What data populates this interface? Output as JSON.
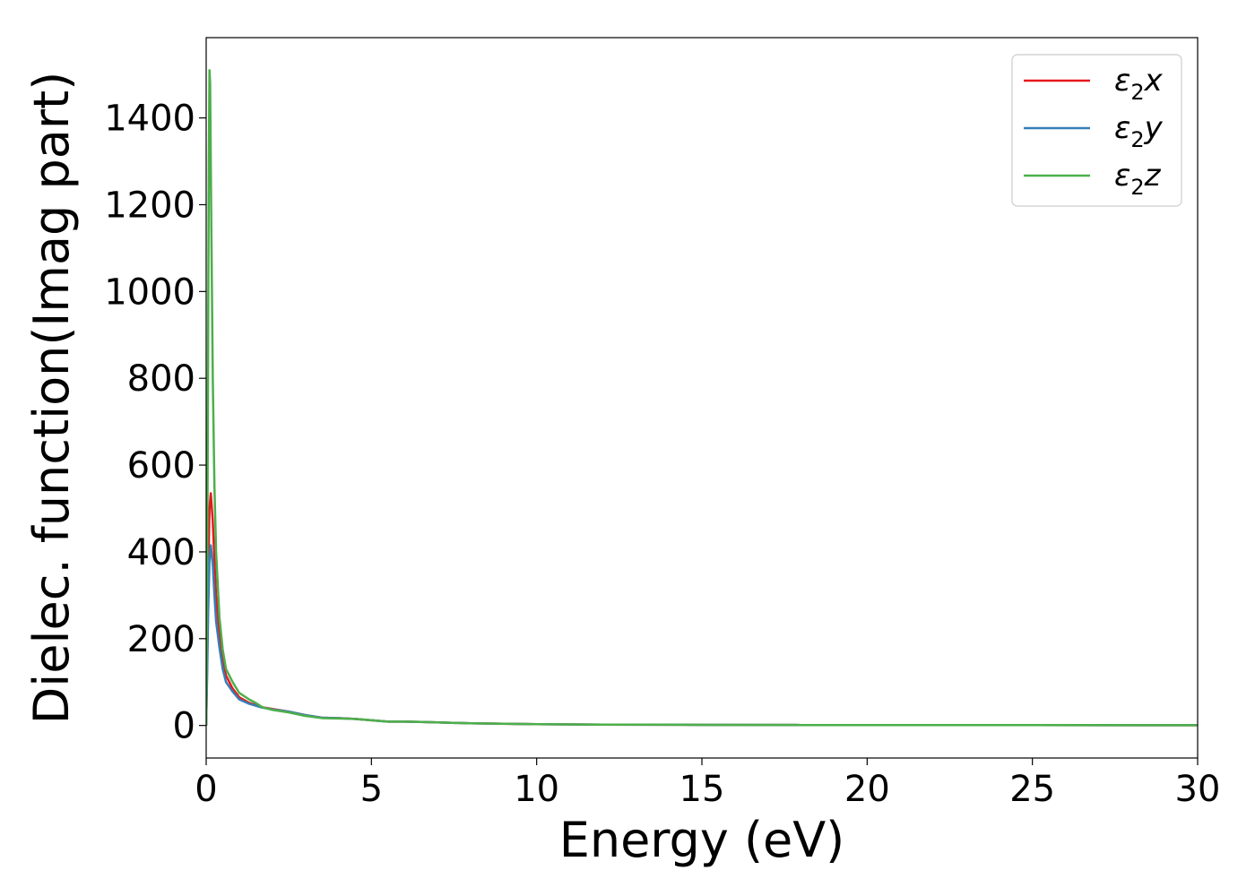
{
  "chart_data": {
    "type": "line",
    "xlabel": "Energy (eV)",
    "ylabel": "Dielec. function(Imag part)",
    "xlim": [
      0,
      30
    ],
    "ylim": [
      -75,
      1585
    ],
    "x_ticks": [
      0,
      5,
      10,
      15,
      20,
      25,
      30
    ],
    "y_ticks": [
      0,
      200,
      400,
      600,
      800,
      1000,
      1200,
      1400
    ],
    "grid": false,
    "legend_position": "top-right",
    "series": [
      {
        "name": "ε2x",
        "label_base": "ε",
        "label_sub": "2",
        "label_tail": "x",
        "color": "#e41a1c",
        "x": [
          0,
          0.03,
          0.06,
          0.1,
          0.14,
          0.2,
          0.25,
          0.3,
          0.4,
          0.5,
          0.6,
          0.8,
          1.0,
          1.3,
          1.7,
          2.0,
          2.5,
          3.0,
          3.5,
          4.0,
          4.5,
          5.0,
          5.5,
          6.0,
          6.5,
          7.0,
          8.0,
          9.0,
          10.0,
          12.0,
          15.0,
          18.0,
          20.0,
          25.0,
          30.0
        ],
        "y": [
          0,
          150,
          330,
          500,
          535,
          470,
          380,
          300,
          210,
          150,
          115,
          85,
          65,
          52,
          42,
          38,
          32,
          24,
          18,
          17,
          15,
          12,
          9,
          9,
          8,
          7,
          5,
          4,
          3,
          2,
          1.5,
          1,
          1,
          0.8,
          0.5
        ]
      },
      {
        "name": "ε2y",
        "label_base": "ε",
        "label_sub": "2",
        "label_tail": "y",
        "color": "#377eb8",
        "x": [
          0,
          0.03,
          0.06,
          0.1,
          0.14,
          0.2,
          0.25,
          0.3,
          0.4,
          0.5,
          0.6,
          0.8,
          1.0,
          1.3,
          1.7,
          2.0,
          2.5,
          3.0,
          3.5,
          4.0,
          4.5,
          5.0,
          5.5,
          6.0,
          6.5,
          7.0,
          8.0,
          9.0,
          10.0,
          12.0,
          15.0,
          18.0,
          20.0,
          25.0,
          30.0
        ],
        "y": [
          0,
          120,
          260,
          380,
          415,
          370,
          300,
          240,
          180,
          130,
          100,
          78,
          60,
          50,
          41,
          37,
          32,
          24,
          18,
          17,
          15,
          12,
          9,
          9,
          8,
          7,
          5,
          4,
          3,
          2,
          1.5,
          1,
          1,
          0.8,
          0.5
        ]
      },
      {
        "name": "ε2z",
        "label_base": "ε",
        "label_sub": "2",
        "label_tail": "z",
        "color": "#4daf4a",
        "x": [
          0,
          0.03,
          0.06,
          0.08,
          0.1,
          0.12,
          0.15,
          0.2,
          0.25,
          0.3,
          0.4,
          0.5,
          0.6,
          0.8,
          1.0,
          1.3,
          1.5,
          1.7,
          2.0,
          2.5,
          3.0,
          3.5,
          4.0,
          4.5,
          5.0,
          5.5,
          6.0,
          6.5,
          7.0,
          8.0,
          9.0,
          10.0,
          12.0,
          15.0,
          18.0,
          20.0,
          25.0,
          30.0
        ],
        "y": [
          0,
          300,
          900,
          1300,
          1510,
          1480,
          1200,
          800,
          550,
          400,
          250,
          175,
          130,
          100,
          75,
          60,
          52,
          42,
          36,
          30,
          22,
          17,
          16,
          15,
          12,
          9,
          9,
          8,
          7,
          5,
          4,
          3,
          2,
          1.5,
          1,
          1,
          0.8,
          0.5
        ]
      }
    ]
  }
}
